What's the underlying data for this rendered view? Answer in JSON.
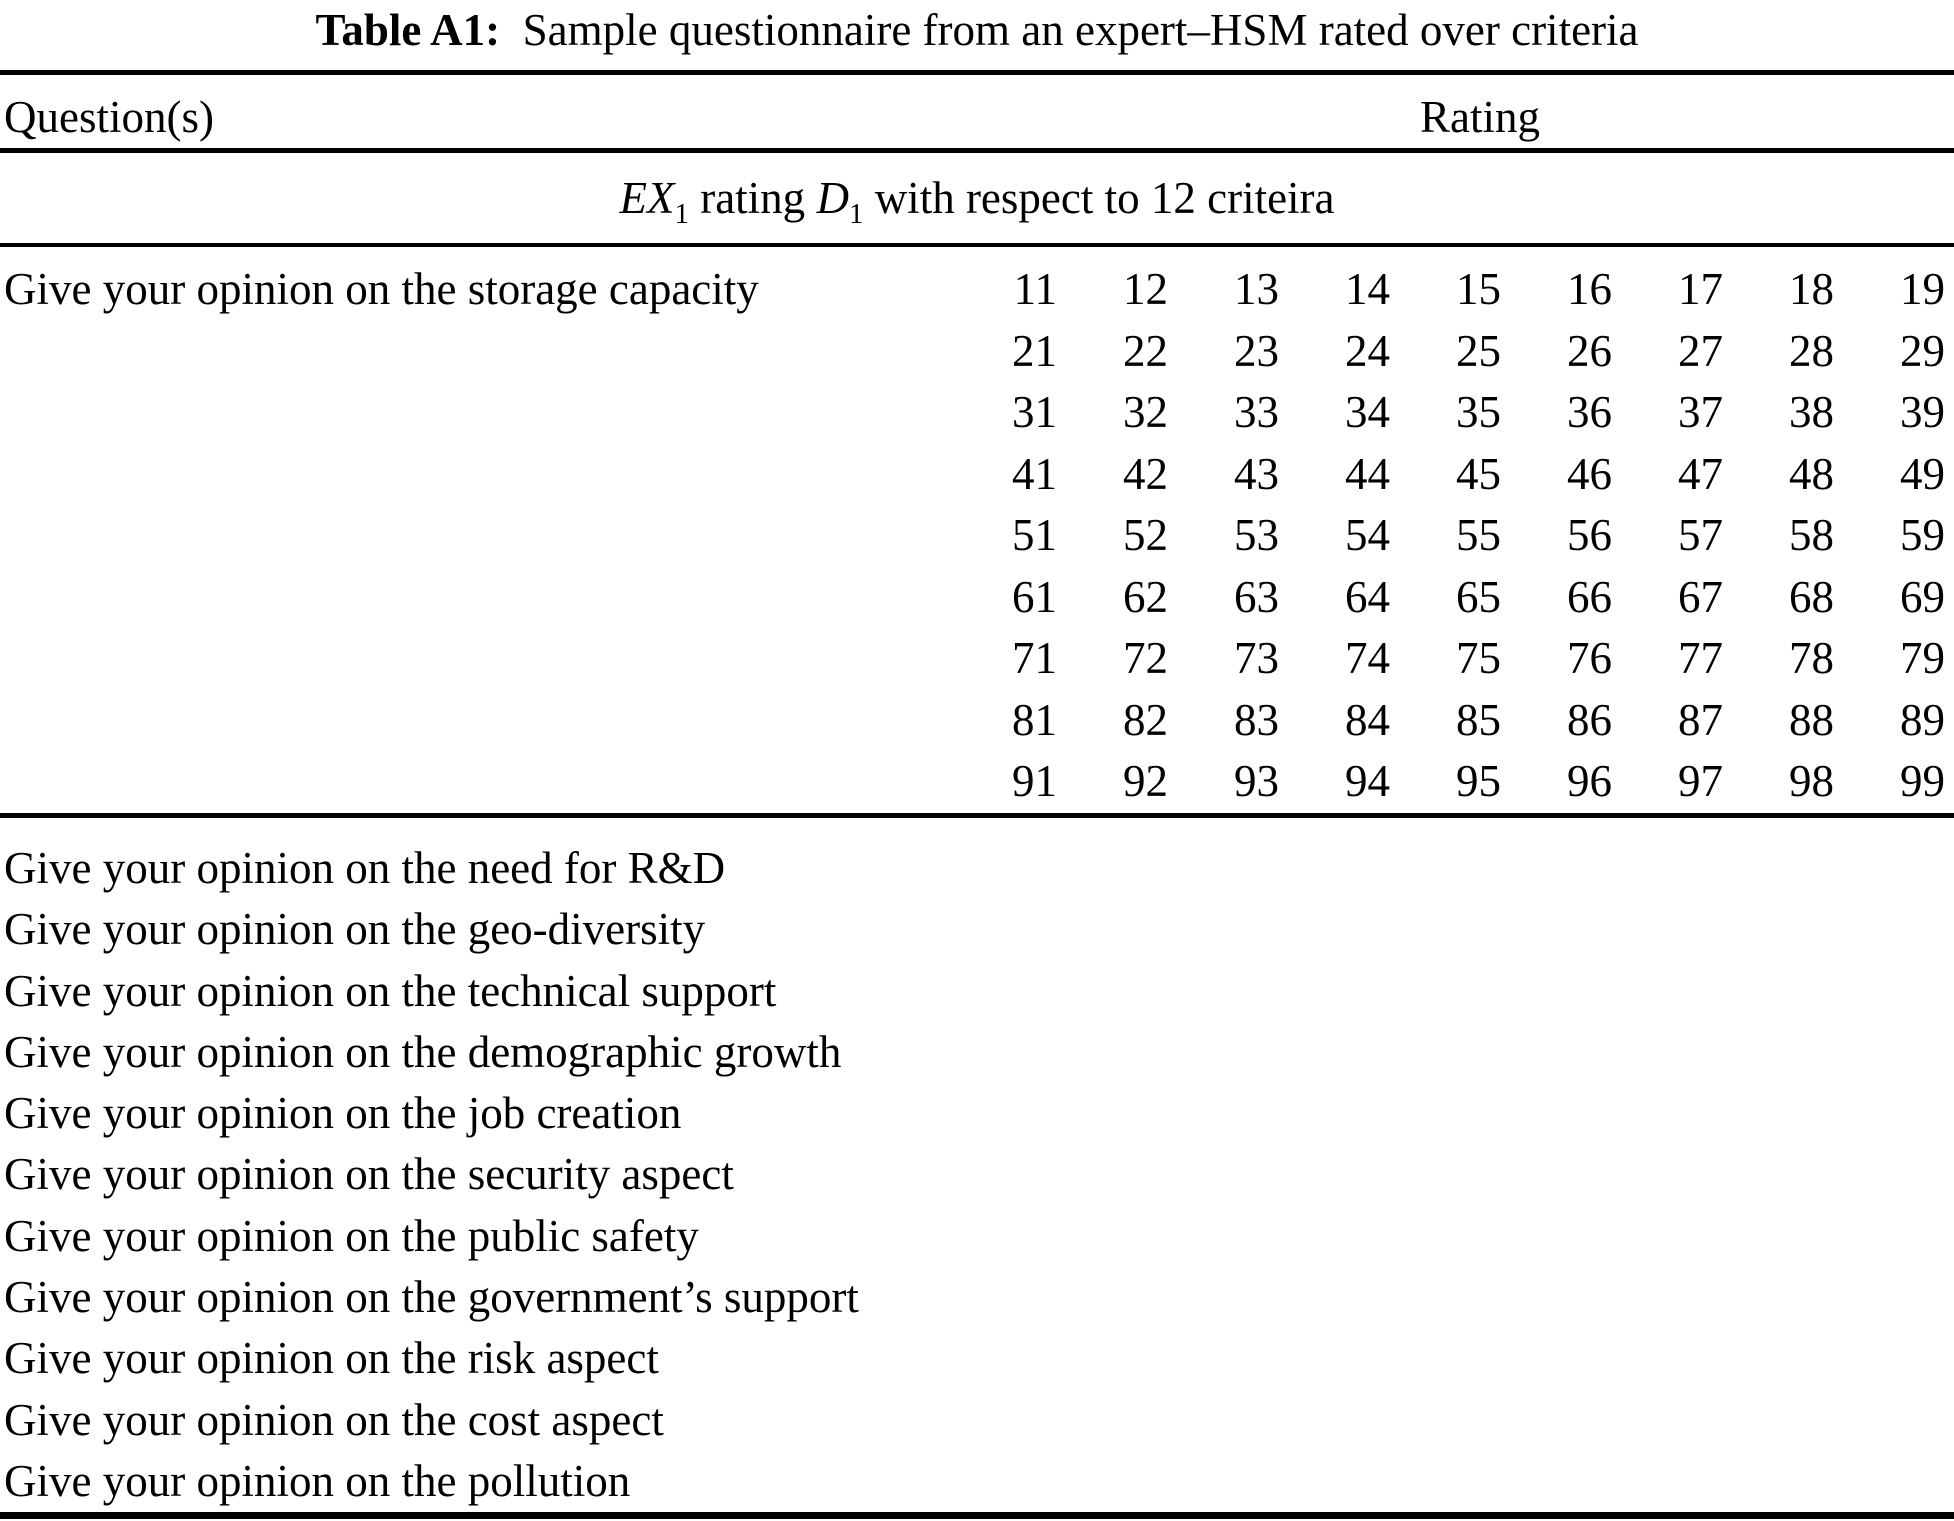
{
  "table": {
    "caption": {
      "label": "Table A1:",
      "text": "Sample questionnaire from an expert–HSM rated over criteria"
    },
    "columns": {
      "question": "Question(s)",
      "rating": "Rating"
    },
    "span_header": {
      "ex": "EX",
      "ex_sub": "1",
      "mid": " rating ",
      "d": "D",
      "d_sub": "1",
      "rest": " with respect to 12 criteira"
    },
    "first_question": "Give your opinion on the storage capacity",
    "rating_grid": [
      [
        "11",
        "12",
        "13",
        "14",
        "15",
        "16",
        "17",
        "18",
        "19"
      ],
      [
        "21",
        "22",
        "23",
        "24",
        "25",
        "26",
        "27",
        "28",
        "29"
      ],
      [
        "31",
        "32",
        "33",
        "34",
        "35",
        "36",
        "37",
        "38",
        "39"
      ],
      [
        "41",
        "42",
        "43",
        "44",
        "45",
        "46",
        "47",
        "48",
        "49"
      ],
      [
        "51",
        "52",
        "53",
        "54",
        "55",
        "56",
        "57",
        "58",
        "59"
      ],
      [
        "61",
        "62",
        "63",
        "64",
        "65",
        "66",
        "67",
        "68",
        "69"
      ],
      [
        "71",
        "72",
        "73",
        "74",
        "75",
        "76",
        "77",
        "78",
        "79"
      ],
      [
        "81",
        "82",
        "83",
        "84",
        "85",
        "86",
        "87",
        "88",
        "89"
      ],
      [
        "91",
        "92",
        "93",
        "94",
        "95",
        "96",
        "97",
        "98",
        "99"
      ]
    ],
    "questions": [
      "Give your opinion on the need for R&D",
      "Give your opinion on the geo-diversity",
      "Give your opinion on the technical support",
      "Give your opinion on the demographic growth",
      "Give your opinion on the job creation",
      "Give your opinion on the security aspect",
      "Give your opinion on the public safety",
      "Give your opinion on the government’s support",
      "Give your opinion on the risk aspect",
      "Give your opinion on the cost aspect",
      "Give your opinion on the pollution"
    ]
  }
}
